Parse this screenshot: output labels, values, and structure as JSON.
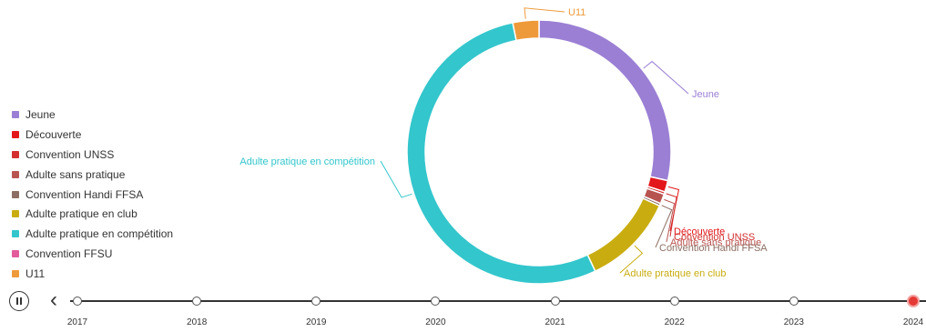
{
  "chart_data": {
    "type": "pie",
    "variant": "donut",
    "title": "",
    "legend_position": "left",
    "series": [
      {
        "name": "Jeune",
        "value": 28.5,
        "color": "#9b7fd4"
      },
      {
        "name": "Découverte",
        "value": 1.4,
        "color": "#e3171b"
      },
      {
        "name": "Convention UNSS",
        "value": 0.3,
        "color": "#d32f2f"
      },
      {
        "name": "Adulte sans pratique",
        "value": 1.2,
        "color": "#b85450"
      },
      {
        "name": "Convention Handi FFSA",
        "value": 0.3,
        "color": "#8d6e63"
      },
      {
        "name": "Adulte pratique en club",
        "value": 11.3,
        "color": "#c9ad10"
      },
      {
        "name": "Adulte pratique en compétition",
        "value": 53.8,
        "color": "#33c6cc"
      },
      {
        "name": "Convention FFSU",
        "value": 0.0,
        "color": "#e25c9c"
      },
      {
        "name": "U11",
        "value": 3.2,
        "color": "#ee9a3a"
      }
    ]
  },
  "timeline": {
    "years": [
      "2017",
      "2018",
      "2019",
      "2020",
      "2021",
      "2022",
      "2023",
      "2024"
    ],
    "selected": "2024",
    "prev_icon": "‹"
  }
}
